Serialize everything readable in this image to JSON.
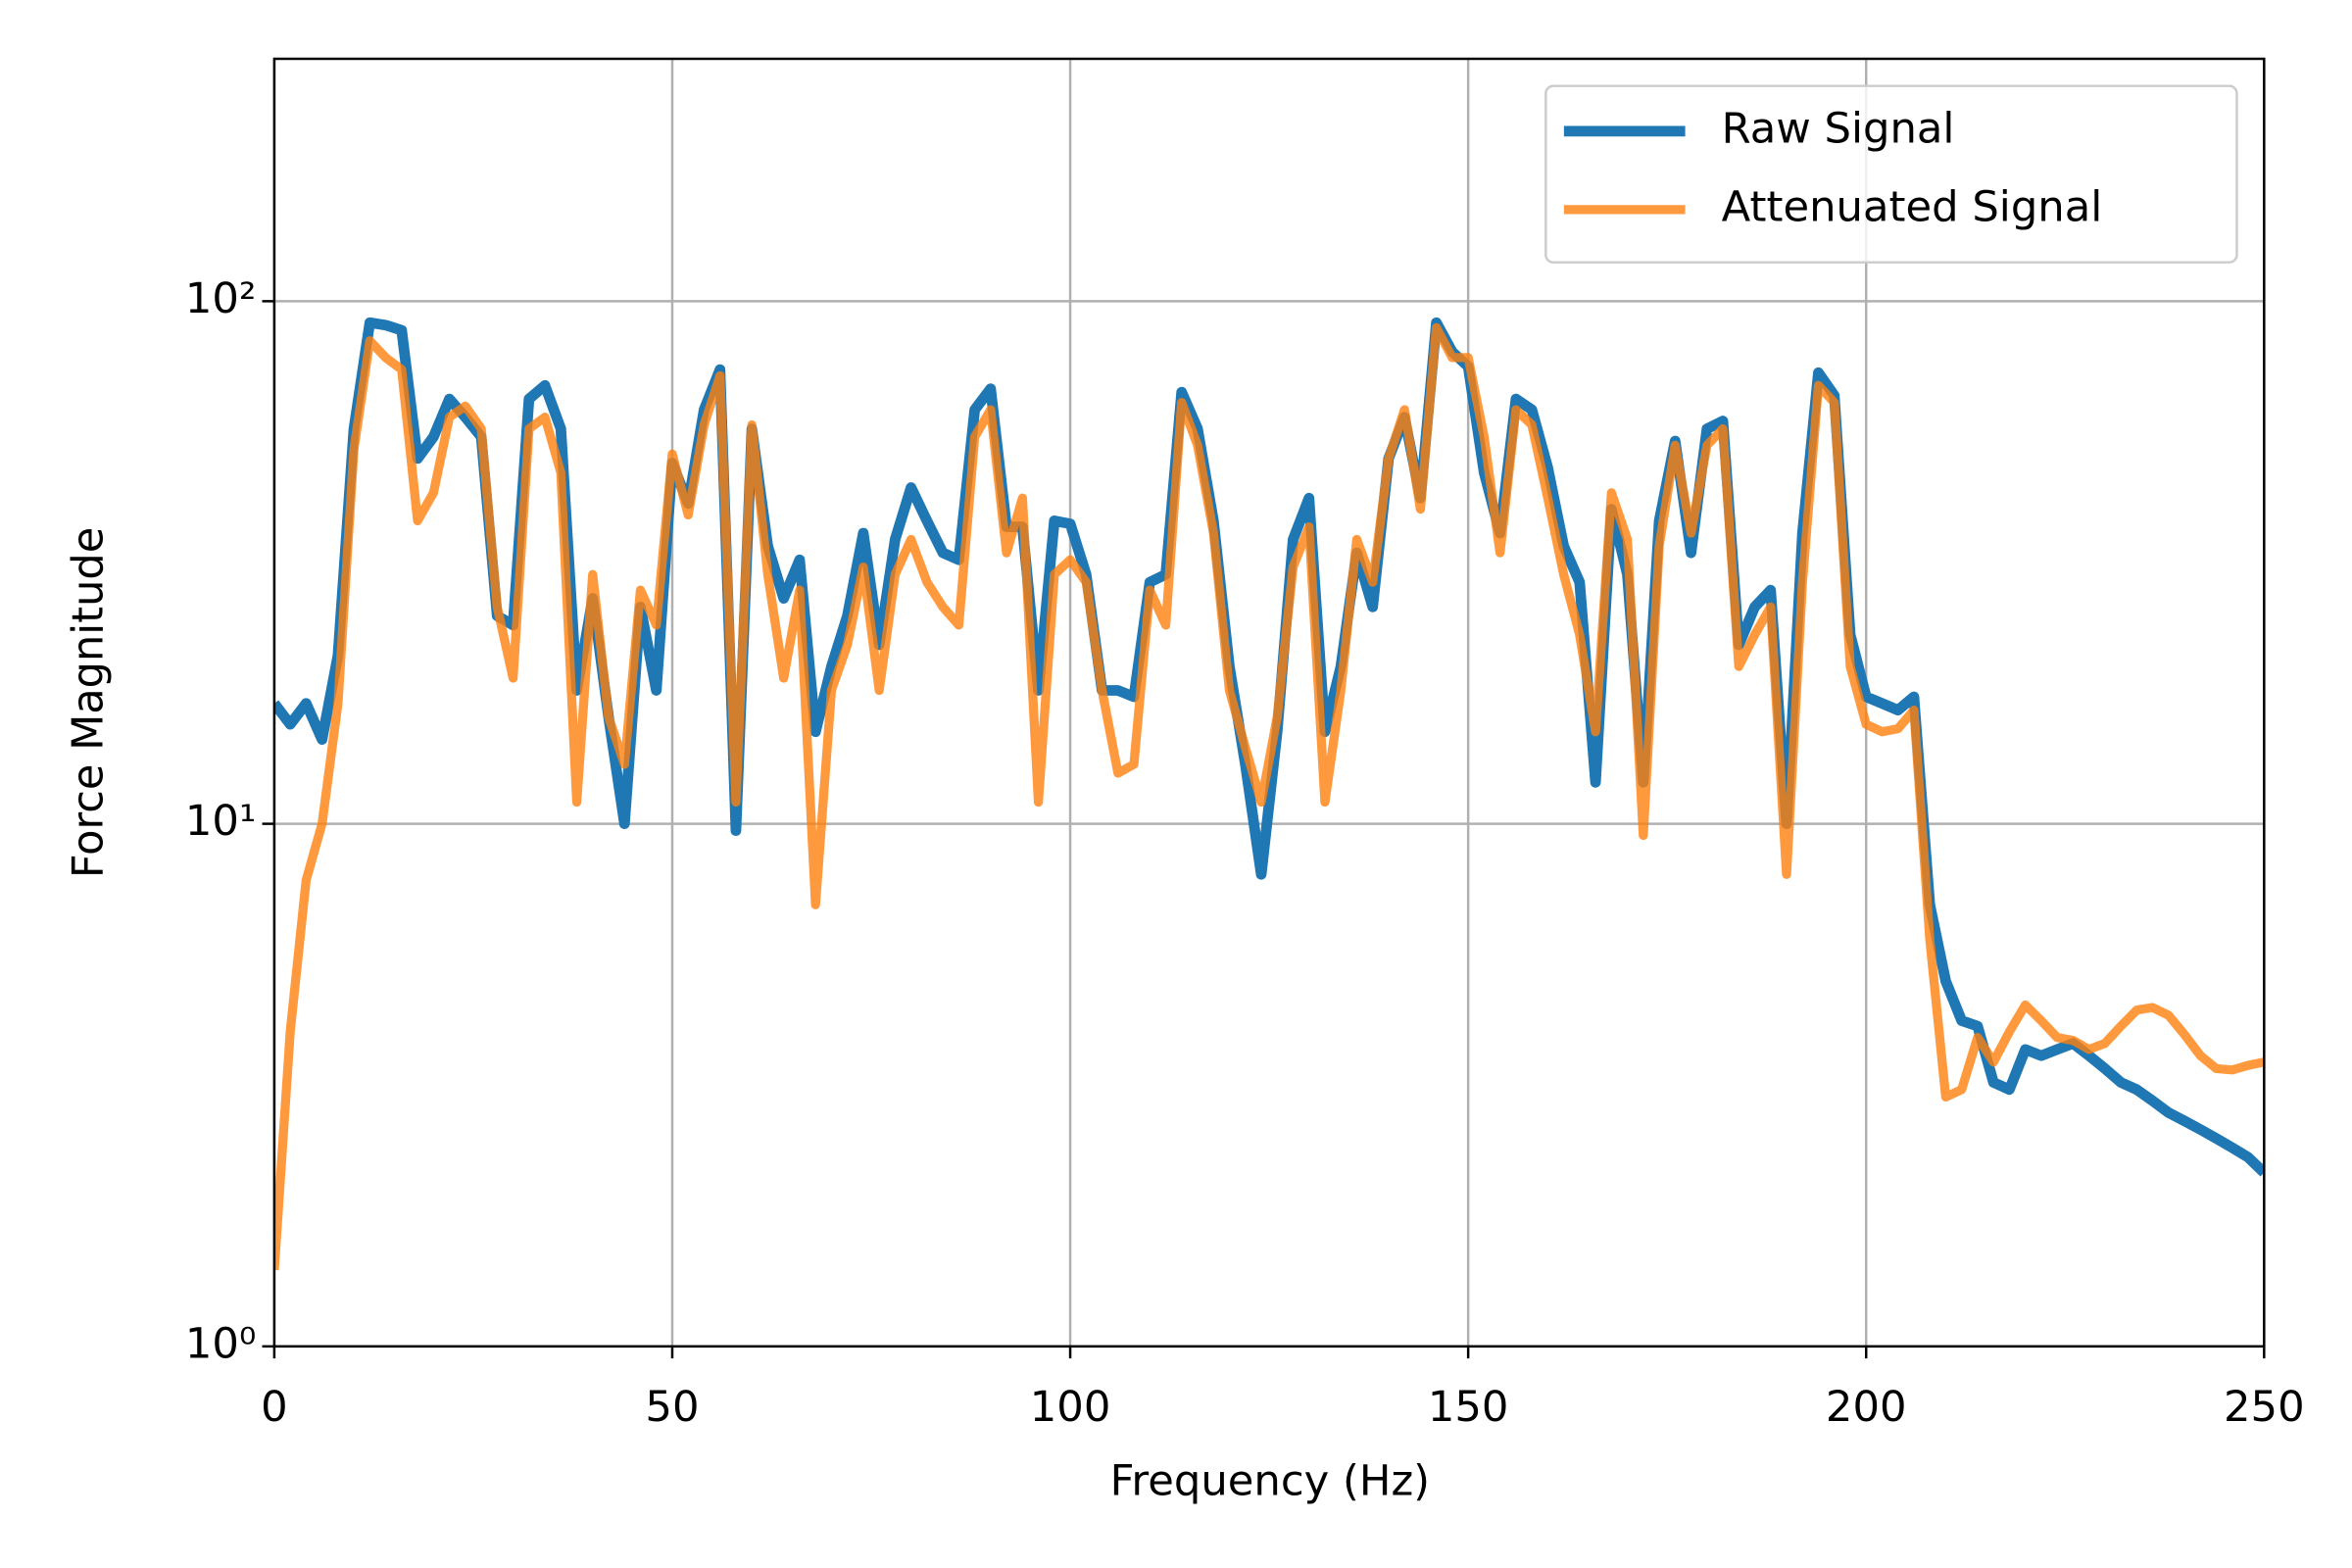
{
  "chart_data": {
    "type": "line",
    "xlabel": "Frequency (Hz)",
    "ylabel": "Force Magnitude",
    "x": [
      0,
      2,
      4,
      6,
      8,
      10,
      12,
      14,
      16,
      18,
      20,
      22,
      24,
      26,
      28,
      30,
      32,
      34,
      36,
      38,
      40,
      42,
      44,
      46,
      48,
      50,
      52,
      54,
      56,
      58,
      60,
      62,
      64,
      66,
      68,
      70,
      72,
      74,
      76,
      78,
      80,
      82,
      84,
      86,
      88,
      90,
      92,
      94,
      96,
      98,
      100,
      102,
      104,
      106,
      108,
      110,
      112,
      114,
      116,
      118,
      120,
      122,
      124,
      126,
      128,
      130,
      132,
      134,
      136,
      138,
      140,
      142,
      144,
      146,
      148,
      150,
      152,
      154,
      156,
      158,
      160,
      162,
      164,
      166,
      168,
      170,
      172,
      174,
      176,
      178,
      180,
      182,
      184,
      186,
      188,
      190,
      192,
      194,
      196,
      198,
      200,
      202,
      204,
      206,
      208,
      210,
      212,
      214,
      216,
      218,
      220,
      222,
      224,
      226,
      228,
      230,
      232,
      234,
      236,
      238,
      240,
      242,
      244,
      246,
      248,
      250
    ],
    "series": [
      {
        "name": "Raw Signal",
        "color": "#1f77b4",
        "values": [
          17,
          15.5,
          17,
          14.5,
          21,
          57,
          91,
          90,
          88,
          50,
          55,
          65,
          60,
          55,
          25,
          24,
          65,
          69,
          57,
          18,
          27,
          16,
          10,
          26,
          18,
          49,
          41,
          62,
          74,
          9.7,
          57,
          34,
          27,
          32,
          15,
          20,
          25,
          36,
          22,
          35,
          44,
          38,
          33,
          32,
          62,
          68,
          37,
          37,
          18,
          38,
          37.5,
          30,
          18,
          18,
          17.5,
          29,
          30,
          67,
          57,
          38,
          20,
          13,
          8,
          15,
          35,
          42,
          15,
          20,
          33,
          26,
          50,
          60,
          42,
          91,
          80,
          75,
          47,
          36,
          65,
          62,
          48,
          34,
          29,
          12,
          40,
          30,
          12,
          38,
          54,
          33,
          57,
          59,
          22,
          26,
          28,
          10,
          36,
          73,
          66,
          23,
          17.5,
          17,
          16.5,
          17.5,
          7,
          5,
          4.2,
          4.1,
          3.2,
          3.1,
          3.7,
          3.6,
          3.7,
          3.8,
          3.6,
          3.4,
          3.2,
          3.1,
          2.95,
          2.8,
          2.7,
          2.6,
          2.5,
          2.4,
          2.3,
          2.15
        ]
      },
      {
        "name": "Attenuated Signal",
        "color": "#ff7f0e",
        "values": [
          1.4,
          4,
          7.8,
          10,
          17,
          52,
          84,
          78,
          74,
          38,
          43,
          60,
          63,
          57,
          26,
          19,
          57,
          60,
          47,
          11,
          30,
          16,
          13,
          28,
          24,
          51,
          39,
          58,
          72,
          11,
          58,
          30,
          19,
          28,
          7,
          18,
          22,
          31,
          18,
          30,
          35,
          29,
          26,
          24,
          55,
          62,
          33,
          42,
          11,
          30,
          32,
          29,
          18,
          12.5,
          13,
          28,
          24,
          64,
          53,
          36,
          18,
          14,
          11,
          16,
          31,
          37,
          11,
          18,
          35,
          29,
          50,
          62,
          40,
          89,
          78,
          78,
          55,
          33,
          62,
          58,
          42,
          30,
          23,
          15,
          43,
          35,
          9.5,
          34,
          53,
          36,
          53,
          57,
          20,
          23,
          26,
          8,
          29,
          69,
          64,
          20,
          15.5,
          15,
          15.2,
          16.5,
          6,
          3,
          3.1,
          3.9,
          3.5,
          4,
          4.5,
          4.2,
          3.9,
          3.85,
          3.7,
          3.8,
          4.1,
          4.4,
          4.45,
          4.3,
          3.95,
          3.6,
          3.4,
          3.38,
          3.45,
          3.5
        ]
      }
    ],
    "xlim": [
      0,
      250
    ],
    "xticks": [
      0,
      50,
      100,
      150,
      200,
      250
    ],
    "ylim": [
      1,
      291
    ],
    "ylog": true,
    "yticks": [
      {
        "value": 1,
        "label": "10⁰"
      },
      {
        "value": 10,
        "label": "10¹"
      },
      {
        "value": 100,
        "label": "10²"
      }
    ],
    "grid": true,
    "legend": "upper right"
  }
}
